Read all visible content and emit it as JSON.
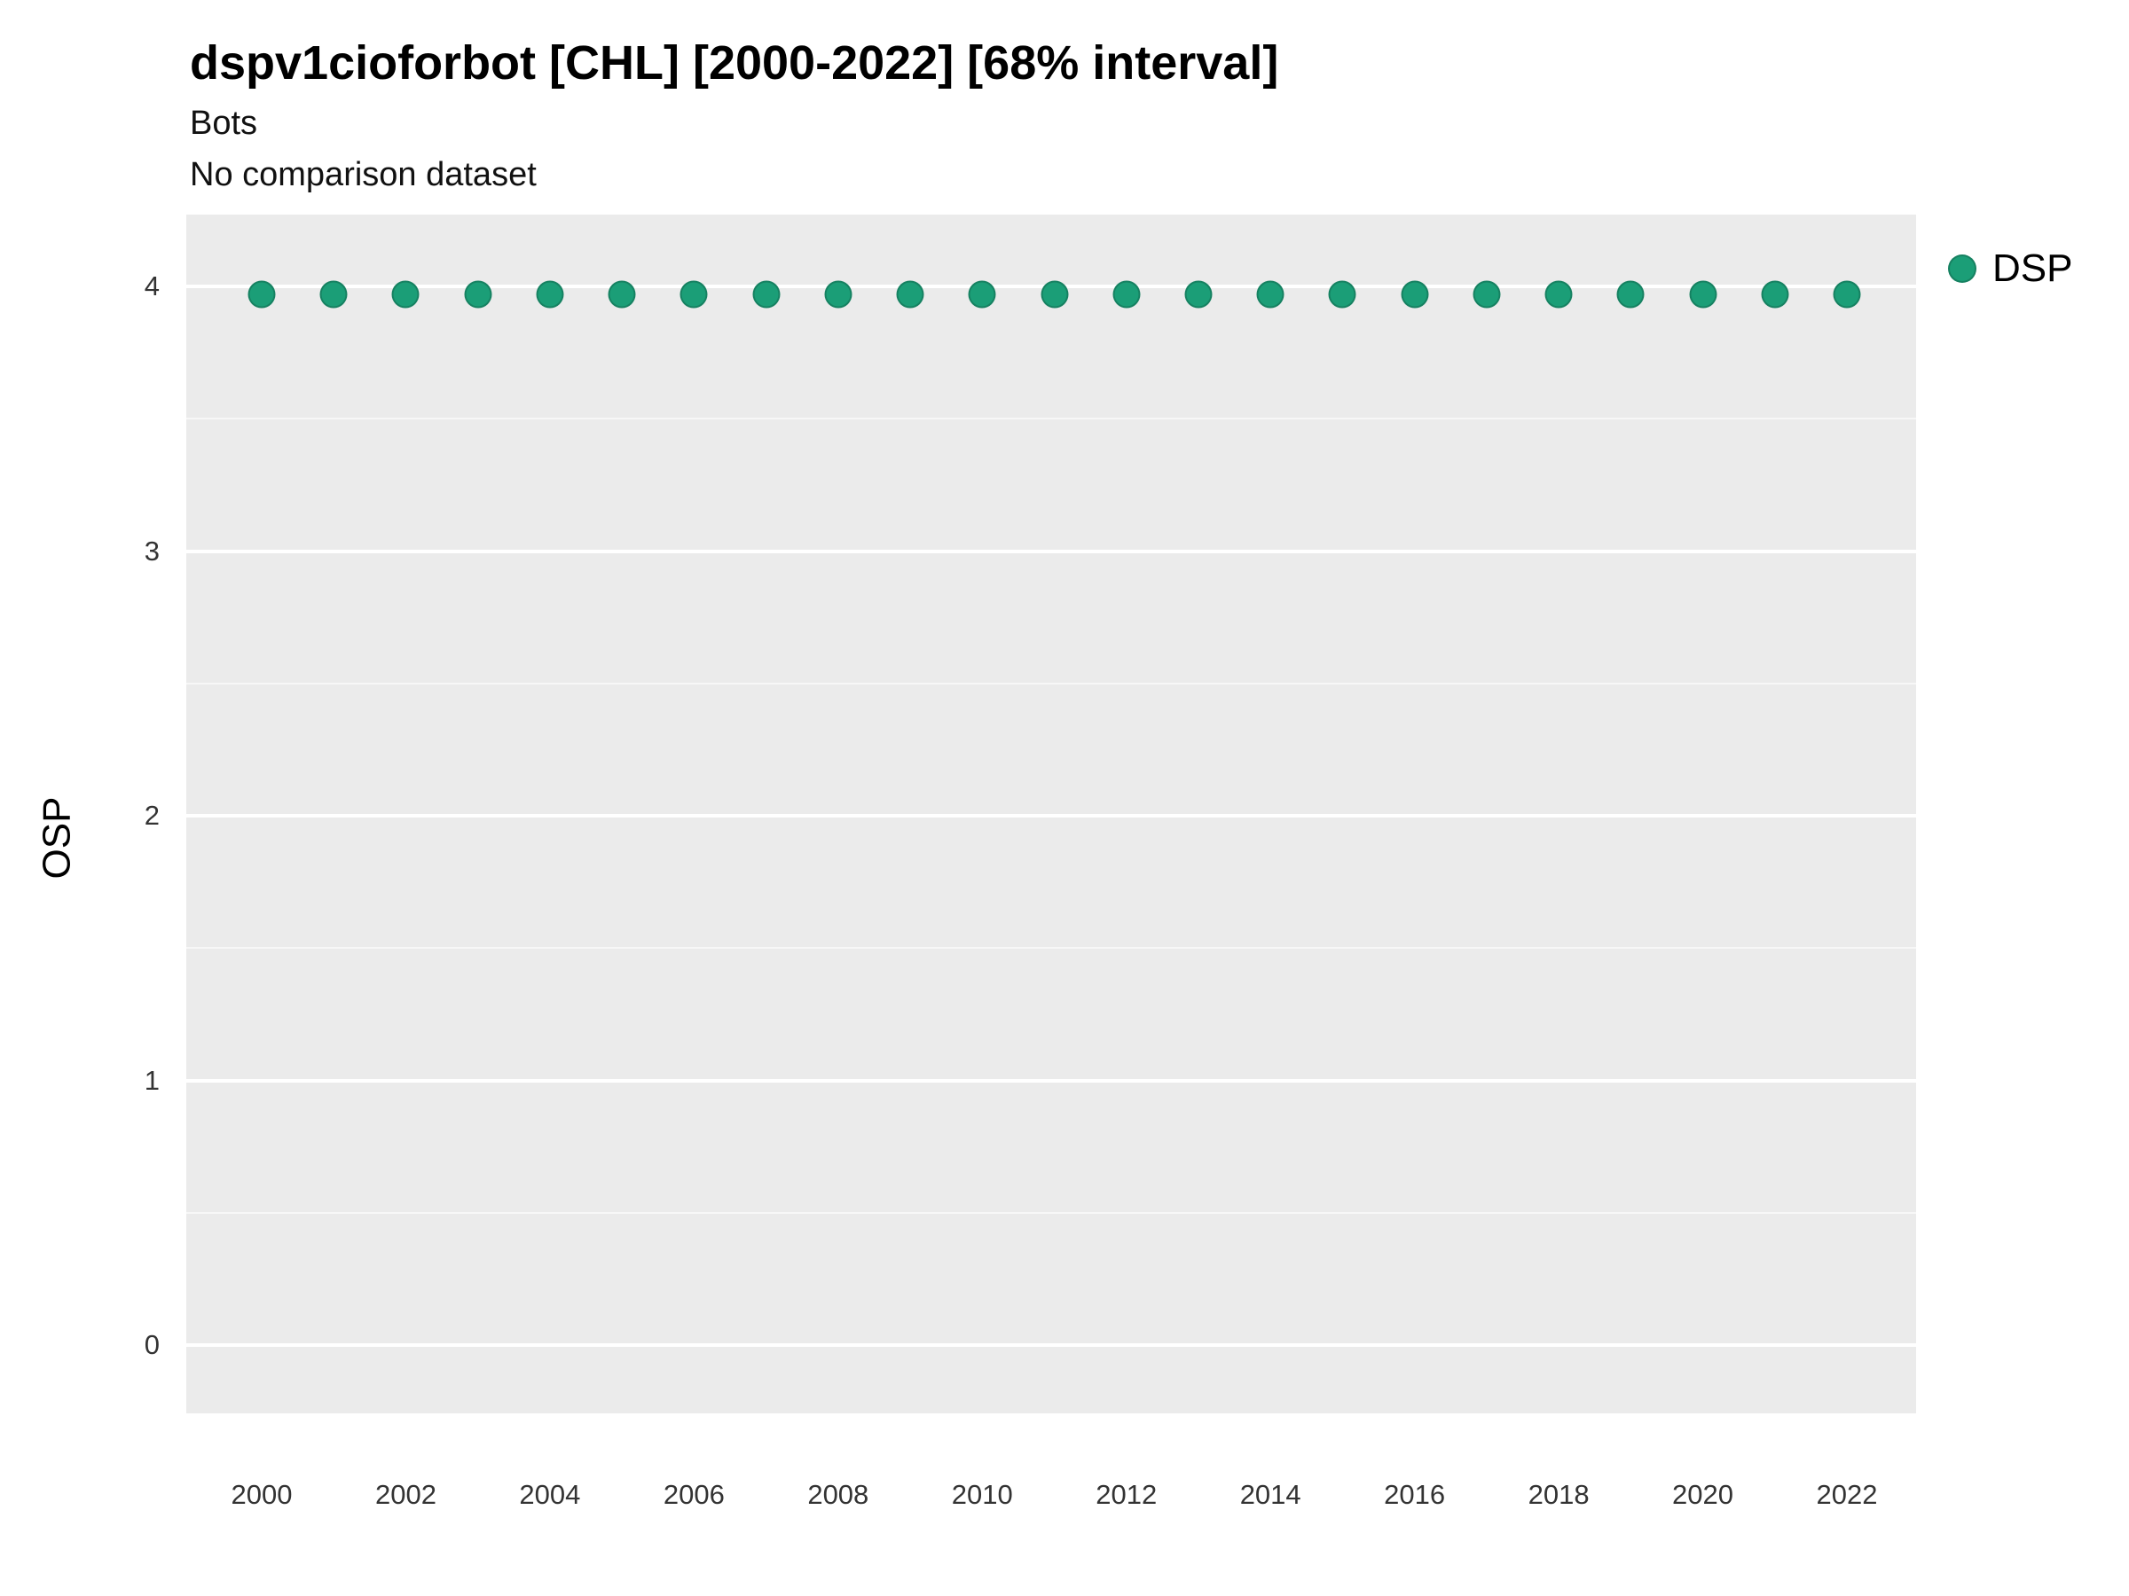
{
  "title": "dspv1cioforbot [CHL] [2000-2022] [68% interval]",
  "subtitle_line1": "Bots",
  "subtitle_line2": "No comparison dataset",
  "colors": {
    "point": "#1B9E77",
    "panel_background": "#EBEBEB",
    "gridline": "#FFFFFF"
  },
  "legend": {
    "position": "right",
    "items": [
      {
        "label": "DSP",
        "color": "#1B9E77",
        "marker": "circle-icon"
      }
    ]
  },
  "chart_data": {
    "type": "scatter",
    "title": "dspv1cioforbot [CHL] [2000-2022] [68% interval]",
    "subtitle": "Bots / No comparison dataset",
    "xlabel": "",
    "ylabel": "OSP",
    "xlim": [
      1999,
      2023
    ],
    "ylim": [
      -0.26,
      4.27
    ],
    "grid": true,
    "legend_position": "right",
    "yticks": [
      0,
      1,
      2,
      3,
      4
    ],
    "yticks_minor": [
      0.5,
      1.5,
      2.5,
      3.5
    ],
    "xticks": [
      2000,
      2002,
      2004,
      2006,
      2008,
      2010,
      2012,
      2014,
      2016,
      2018,
      2020,
      2022
    ],
    "x": [
      2000,
      2001,
      2002,
      2003,
      2004,
      2005,
      2006,
      2007,
      2008,
      2009,
      2010,
      2011,
      2012,
      2013,
      2014,
      2015,
      2016,
      2017,
      2018,
      2019,
      2020,
      2021,
      2022
    ],
    "series": [
      {
        "name": "DSP",
        "color": "#1B9E77",
        "values": [
          3.97,
          3.97,
          3.97,
          3.97,
          3.97,
          3.97,
          3.97,
          3.97,
          3.97,
          3.97,
          3.97,
          3.97,
          3.97,
          3.97,
          3.97,
          3.97,
          3.97,
          3.97,
          3.97,
          3.97,
          3.97,
          3.97,
          3.97
        ]
      }
    ]
  }
}
